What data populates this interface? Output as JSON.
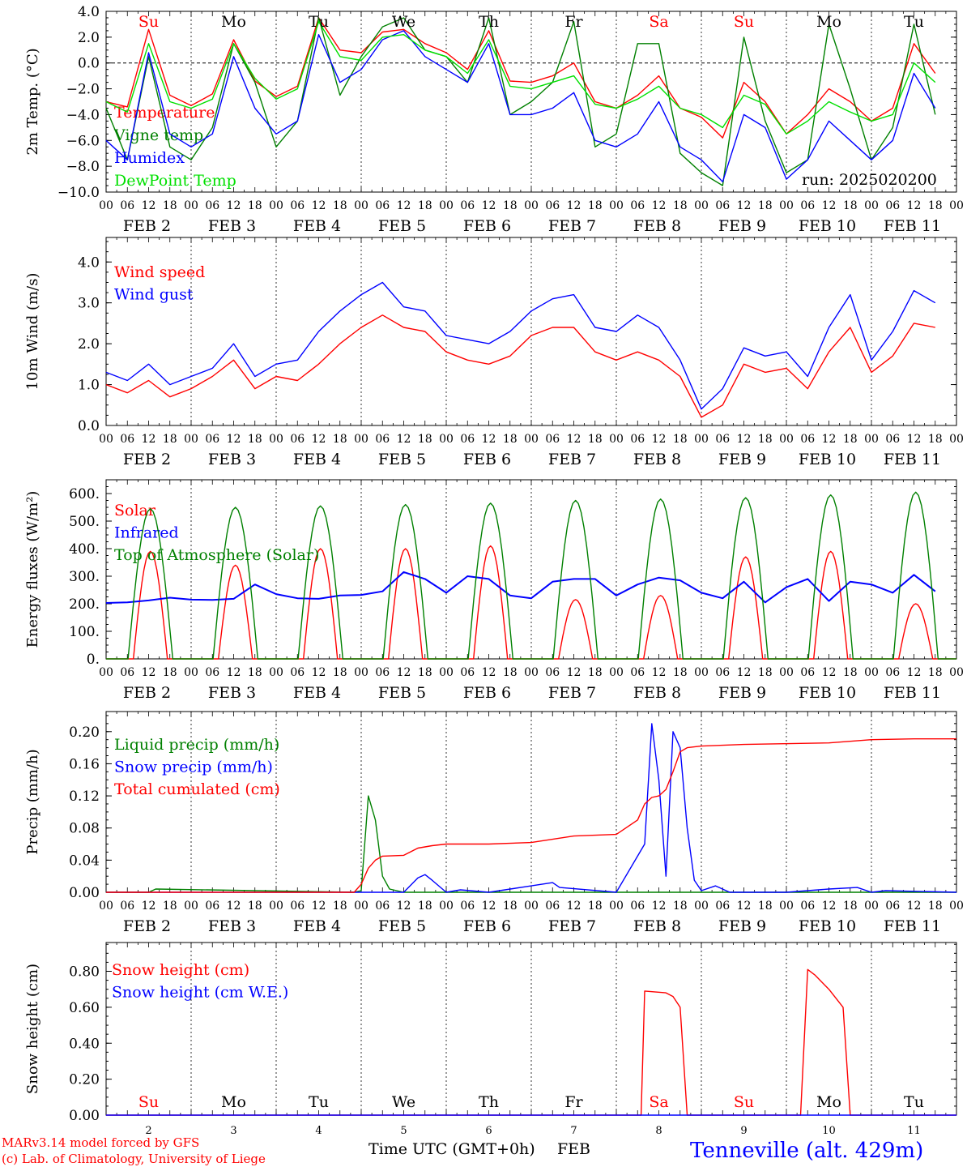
{
  "footer": {
    "model": "MARv3.14 model forced by GFS",
    "lab": "(c) Lab. of Climatology, University of Liege",
    "xlabel": "Time UTC (GMT+0h)",
    "month": "FEB",
    "station": "Tenneville (alt. 429m)"
  },
  "run": "run: 2025020200",
  "colors": {
    "red": "#ff0000",
    "green": "#008000",
    "blue": "#0000ff",
    "lime": "#00e000"
  },
  "hour_labels": [
    "00",
    "06",
    "12",
    "18"
  ],
  "days": [
    {
      "dow": "Su",
      "date": "2",
      "label": "FEB 2",
      "weekend": true
    },
    {
      "dow": "Mo",
      "date": "3",
      "label": "FEB 3",
      "weekend": false
    },
    {
      "dow": "Tu",
      "date": "4",
      "label": "FEB 4",
      "weekend": false
    },
    {
      "dow": "We",
      "date": "5",
      "label": "FEB 5",
      "weekend": false
    },
    {
      "dow": "Th",
      "date": "6",
      "label": "FEB 6",
      "weekend": false
    },
    {
      "dow": "Fr",
      "date": "7",
      "label": "FEB 7",
      "weekend": false
    },
    {
      "dow": "Sa",
      "date": "8",
      "label": "FEB 8",
      "weekend": true
    },
    {
      "dow": "Su",
      "date": "9",
      "label": "FEB 9",
      "weekend": true
    },
    {
      "dow": "Mo",
      "date": "10",
      "label": "FEB 10",
      "weekend": false
    },
    {
      "dow": "Tu",
      "date": "11",
      "label": "FEB 11",
      "weekend": false
    }
  ],
  "chart_data": [
    {
      "type": "line",
      "ylabel": "2m Temp. (°C)",
      "ylim": [
        -10,
        4
      ],
      "yticks": [
        "4.0",
        "2.0",
        "0.0",
        "−2.0",
        "−4.0",
        "−6.0",
        "−8.0",
        "−10.0"
      ],
      "ytick_values": [
        4,
        2,
        0,
        -2,
        -4,
        -6,
        -8,
        -10
      ],
      "zero_line": true,
      "x_hours": [
        0,
        6,
        12,
        18,
        24,
        30,
        36,
        42,
        48,
        54,
        60,
        66,
        72,
        78,
        84,
        90,
        96,
        102,
        108,
        114,
        120,
        126,
        132,
        138,
        144,
        150,
        156,
        162,
        168,
        174,
        180,
        186,
        192,
        198,
        204,
        210,
        216,
        222,
        228,
        234
      ],
      "series": [
        {
          "name": "Temperature",
          "color": "#ff0000",
          "values": [
            -3.0,
            -3.4,
            2.6,
            -2.5,
            -3.3,
            -2.4,
            1.8,
            -1.4,
            -2.6,
            -1.8,
            3.5,
            1.0,
            0.8,
            2.4,
            2.6,
            1.5,
            0.8,
            -0.5,
            2.5,
            -1.4,
            -1.5,
            -1.0,
            0.0,
            -3.0,
            -3.5,
            -2.5,
            -1.0,
            -3.5,
            -4.2,
            -5.8,
            -1.5,
            -3.0,
            -5.5,
            -4.0,
            -2.0,
            -3.0,
            -4.5,
            -3.5,
            1.5,
            -0.8
          ]
        },
        {
          "name": "Vigne temp",
          "color": "#008000",
          "values": [
            -3.5,
            -7.5,
            0.5,
            -6.5,
            -7.5,
            -5.0,
            1.5,
            -1.5,
            -6.5,
            -4.5,
            3.5,
            -2.5,
            0.5,
            2.8,
            3.5,
            1.0,
            0.5,
            -1.5,
            3.5,
            -4.0,
            -3.0,
            -1.5,
            3.2,
            -6.5,
            -5.5,
            1.5,
            1.5,
            -7.0,
            -8.5,
            -9.5,
            2.0,
            -4.5,
            -8.5,
            -7.5,
            3.0,
            -2.0,
            -7.5,
            -5.0,
            3.0,
            -4.0
          ]
        },
        {
          "name": "Humidex",
          "color": "#0000ff",
          "values": [
            -6.0,
            -7.5,
            0.8,
            -5.5,
            -6.5,
            -5.5,
            0.5,
            -3.5,
            -5.5,
            -4.5,
            2.2,
            -1.5,
            -0.5,
            1.8,
            2.5,
            0.5,
            -0.5,
            -1.5,
            1.5,
            -4.0,
            -4.0,
            -3.5,
            -2.3,
            -6.0,
            -6.5,
            -5.5,
            -3.0,
            -6.5,
            -7.5,
            -9.2,
            -4.0,
            -5.0,
            -9.0,
            -7.5,
            -4.5,
            -6.0,
            -7.5,
            -6.0,
            -0.8,
            -3.5
          ]
        },
        {
          "name": "DewPoint Temp",
          "color": "#00e000",
          "values": [
            -3.0,
            -3.8,
            1.5,
            -3.0,
            -3.5,
            -2.8,
            1.5,
            -1.2,
            -2.8,
            -2.0,
            3.2,
            0.5,
            0.2,
            2.0,
            2.2,
            1.0,
            0.5,
            -0.8,
            1.8,
            -1.8,
            -2.0,
            -1.5,
            -1.0,
            -3.2,
            -3.5,
            -2.8,
            -1.8,
            -3.5,
            -4.0,
            -5.0,
            -2.5,
            -3.2,
            -5.5,
            -4.5,
            -3.0,
            -3.8,
            -4.5,
            -4.0,
            0.0,
            -1.5
          ]
        }
      ]
    },
    {
      "type": "line",
      "ylabel": "10m Wind (m/s)",
      "ylim": [
        0,
        4.6
      ],
      "yticks": [
        "4.0",
        "3.0",
        "2.0",
        "1.0",
        "0.0"
      ],
      "ytick_values": [
        4,
        3,
        2,
        1,
        0
      ],
      "x_hours": [
        0,
        6,
        12,
        18,
        24,
        30,
        36,
        42,
        48,
        54,
        60,
        66,
        72,
        78,
        84,
        90,
        96,
        102,
        108,
        114,
        120,
        126,
        132,
        138,
        144,
        150,
        156,
        162,
        168,
        174,
        180,
        186,
        192,
        198,
        204,
        210,
        216,
        222,
        228,
        234
      ],
      "series": [
        {
          "name": "Wind speed",
          "color": "#ff0000",
          "values": [
            1.0,
            0.8,
            1.1,
            0.7,
            0.9,
            1.2,
            1.6,
            0.9,
            1.2,
            1.1,
            1.5,
            2.0,
            2.4,
            2.7,
            2.4,
            2.3,
            1.8,
            1.6,
            1.5,
            1.7,
            2.2,
            2.4,
            2.4,
            1.8,
            1.6,
            1.8,
            1.6,
            1.2,
            0.2,
            0.5,
            1.5,
            1.3,
            1.4,
            0.9,
            1.8,
            2.4,
            1.3,
            1.7,
            2.5,
            2.4
          ]
        },
        {
          "name": "Wind gust",
          "color": "#0000ff",
          "values": [
            1.3,
            1.1,
            1.5,
            1.0,
            1.2,
            1.4,
            2.0,
            1.2,
            1.5,
            1.6,
            2.3,
            2.8,
            3.2,
            3.5,
            2.9,
            2.8,
            2.2,
            2.1,
            2.0,
            2.3,
            2.8,
            3.1,
            3.2,
            2.4,
            2.3,
            2.7,
            2.4,
            1.6,
            0.4,
            0.9,
            1.9,
            1.7,
            1.8,
            1.2,
            2.4,
            3.2,
            1.6,
            2.3,
            3.3,
            3.0
          ]
        }
      ]
    },
    {
      "type": "line",
      "ylabel": "Energy fluxes (W/m²)",
      "ylim": [
        0,
        650
      ],
      "yticks": [
        "600.",
        "500.",
        "400.",
        "300.",
        "200.",
        "100.",
        "0."
      ],
      "ytick_values": [
        600,
        500,
        400,
        300,
        200,
        100,
        0
      ],
      "series": [
        {
          "name": "Solar",
          "color": "#ff0000",
          "peaks": [
            390,
            340,
            400,
            400,
            410,
            215,
            230,
            370,
            390,
            200
          ]
        },
        {
          "name": "Infrared",
          "color": "#0000ff",
          "x_hours": [
            0,
            6,
            12,
            18,
            24,
            30,
            36,
            42,
            48,
            54,
            60,
            66,
            72,
            78,
            84,
            90,
            96,
            102,
            108,
            114,
            120,
            126,
            132,
            138,
            144,
            150,
            156,
            162,
            168,
            174,
            180,
            186,
            192,
            198,
            204,
            210,
            216,
            222,
            228,
            234
          ],
          "values": [
            203,
            205,
            212,
            222,
            215,
            214,
            218,
            270,
            235,
            220,
            218,
            230,
            232,
            245,
            315,
            290,
            240,
            300,
            290,
            230,
            220,
            280,
            290,
            290,
            230,
            270,
            295,
            285,
            240,
            220,
            280,
            205,
            260,
            290,
            210,
            280,
            270,
            240,
            305,
            245
          ]
        },
        {
          "name": "Top of Atmosphere (Solar)",
          "color": "#008000",
          "peaks": [
            545,
            550,
            555,
            560,
            565,
            575,
            580,
            585,
            595,
            605
          ]
        }
      ]
    },
    {
      "type": "line",
      "ylabel": "Precip (mm/h)",
      "ylim": [
        0,
        0.225
      ],
      "yticks": [
        "0.20",
        "0.16",
        "0.12",
        "0.08",
        "0.04",
        "0.00"
      ],
      "ytick_values": [
        0.2,
        0.16,
        0.12,
        0.08,
        0.04,
        0.0
      ],
      "series": [
        {
          "name": "Liquid precip (mm/h)",
          "color": "#008000",
          "x_hours": [
            0,
            12,
            14,
            70,
            72,
            74,
            76,
            78,
            80,
            84,
            96,
            240
          ],
          "values": [
            0,
            0,
            0.004,
            0,
            0.002,
            0.12,
            0.09,
            0.02,
            0.004,
            0,
            0,
            0
          ]
        },
        {
          "name": "Snow precip (mm/h)",
          "color": "#0000ff",
          "x_hours": [
            0,
            84,
            88,
            90,
            92,
            96,
            100,
            108,
            120,
            126,
            128,
            144,
            152,
            154,
            156,
            158,
            160,
            162,
            164,
            166,
            168,
            172,
            176,
            180,
            192,
            204,
            212,
            216,
            220,
            240
          ],
          "values": [
            0,
            0,
            0.018,
            0.022,
            0.015,
            0,
            0.003,
            0,
            0.008,
            0.012,
            0.006,
            0,
            0.06,
            0.21,
            0.14,
            0.02,
            0.2,
            0.18,
            0.08,
            0.015,
            0.002,
            0.008,
            0,
            0,
            0,
            0.004,
            0.006,
            0,
            0.002,
            0
          ]
        },
        {
          "name": "Total cumulated (cm)",
          "color": "#ff0000",
          "x_hours": [
            0,
            70,
            72,
            74,
            76,
            78,
            84,
            88,
            92,
            96,
            108,
            120,
            132,
            144,
            150,
            152,
            154,
            156,
            158,
            160,
            162,
            164,
            168,
            180,
            204,
            216,
            228,
            240
          ],
          "values": [
            0,
            0,
            0.01,
            0.03,
            0.04,
            0.045,
            0.046,
            0.055,
            0.058,
            0.06,
            0.06,
            0.062,
            0.07,
            0.072,
            0.09,
            0.11,
            0.118,
            0.12,
            0.128,
            0.15,
            0.175,
            0.18,
            0.182,
            0.184,
            0.186,
            0.19,
            0.191,
            0.191
          ]
        }
      ]
    },
    {
      "type": "line",
      "ylabel": "Snow height (cm)",
      "ylim": [
        0,
        0.96
      ],
      "yticks": [
        "0.80",
        "0.60",
        "0.40",
        "0.20",
        "0.00"
      ],
      "ytick_values": [
        0.8,
        0.6,
        0.4,
        0.2,
        0.0
      ],
      "series": [
        {
          "name": "Snow height (cm)",
          "color": "#ff0000",
          "x_hours": [
            0,
            151,
            152,
            158,
            160,
            162,
            164,
            196,
            198,
            200,
            204,
            208,
            210,
            240
          ],
          "values": [
            0,
            0,
            0.69,
            0.68,
            0.66,
            0.6,
            0,
            0,
            0.81,
            0.78,
            0.7,
            0.6,
            0,
            0
          ]
        },
        {
          "name": "Snow height (cm W.E.)",
          "color": "#0000ff",
          "x_hours": [
            0,
            240
          ],
          "values": [
            0,
            0
          ]
        }
      ]
    }
  ]
}
